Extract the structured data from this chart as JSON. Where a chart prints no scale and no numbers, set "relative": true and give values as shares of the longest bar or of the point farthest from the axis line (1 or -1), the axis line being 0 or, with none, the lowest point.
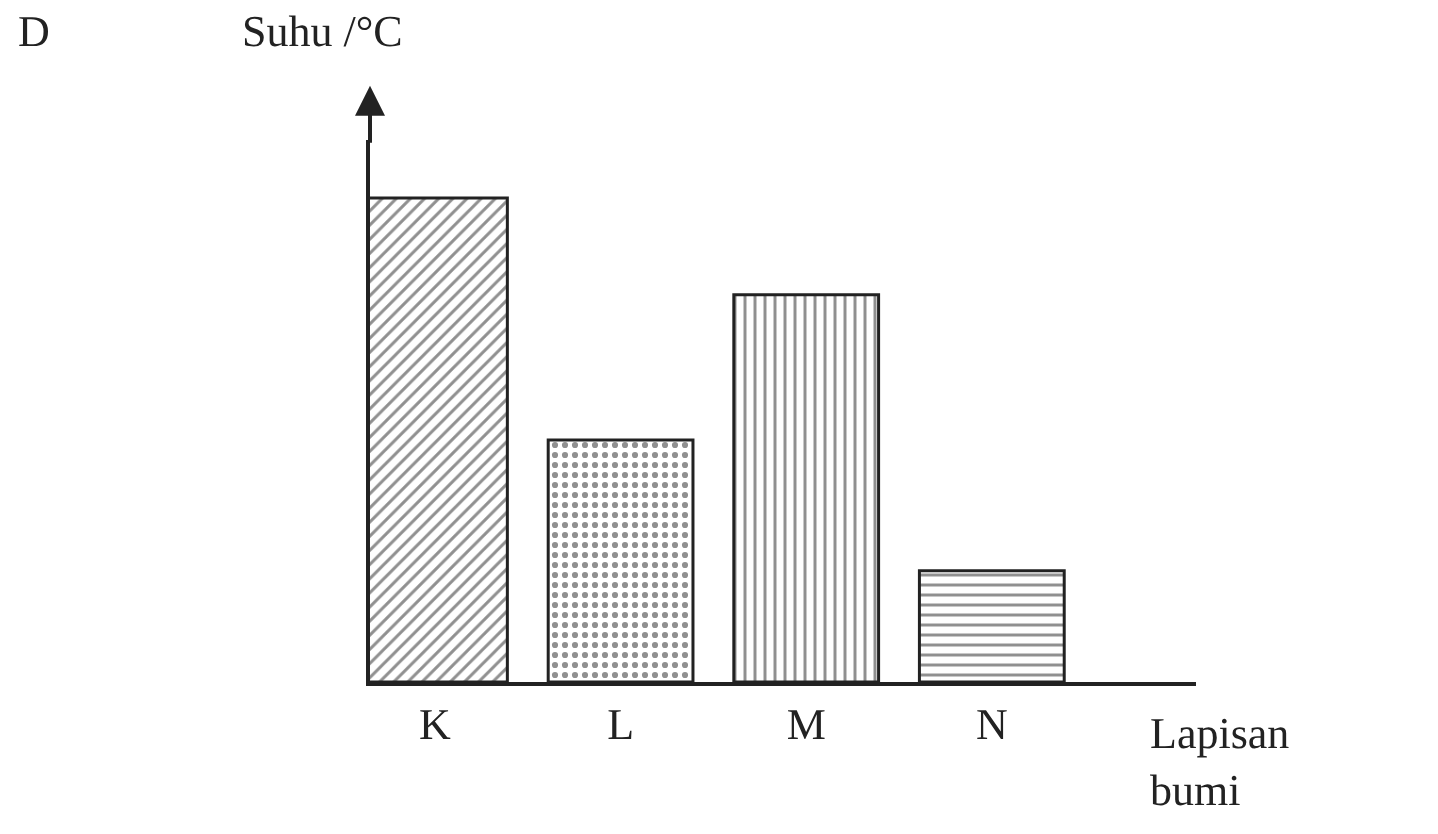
{
  "chart_data": {
    "type": "bar",
    "title": "D",
    "ylabel": "Suhu /°C",
    "xlabel": "Lapisan bumi",
    "categories": [
      "K",
      "L",
      "M",
      "N"
    ],
    "values": [
      1,
      0.5,
      0.8,
      0.23
    ],
    "color": "#222222",
    "relative": true
  }
}
